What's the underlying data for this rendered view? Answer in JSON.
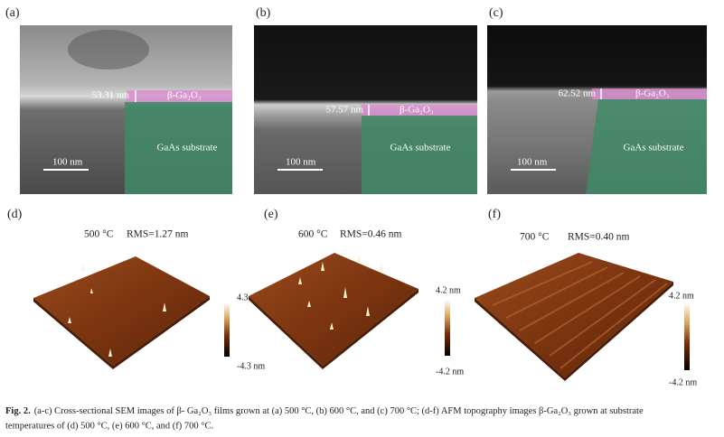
{
  "sem_panels": [
    {
      "label": "(a)",
      "thickness": "53.31 nm",
      "layer": "β-Ga₂O₃",
      "substrate": "GaAs substrate",
      "scale": "100 nm"
    },
    {
      "label": "(b)",
      "thickness": "57.57 nm",
      "layer": "β-Ga₂O₃",
      "substrate": "GaAs substrate",
      "scale": "100 nm"
    },
    {
      "label": "(c)",
      "thickness": "62.52 nm",
      "layer": "β-Ga₂O₃",
      "substrate": "GaAs substrate",
      "scale": "100 nm"
    }
  ],
  "afm_panels": [
    {
      "label": "(d)",
      "temperature": "500 °C",
      "rms": "RMS=1.27 nm",
      "max": "4.3 nm",
      "min": "-4.3 nm"
    },
    {
      "label": "(e)",
      "temperature": "600 °C",
      "rms": "RMS=0.46 nm",
      "max": "4.2 nm",
      "min": "-4.2 nm"
    },
    {
      "label": "(f)",
      "temperature": "700 °C",
      "rms": "RMS=0.40 nm",
      "max": "4.2 nm",
      "min": "-4.2 nm"
    }
  ],
  "caption": {
    "label": "Fig. 2.",
    "lines": [
      "(a-c) Cross-sectional SEM images of β- Ga₂O₃ films grown at (a) 500 °C, (b) 600 °C, and (c) 700 °C; (d-f) AFM topography images β-Ga₂O₃ grown at substrate",
      "temperatures of (d) 500 °C, (e) 600 °C, and (f) 700 °C."
    ]
  }
}
